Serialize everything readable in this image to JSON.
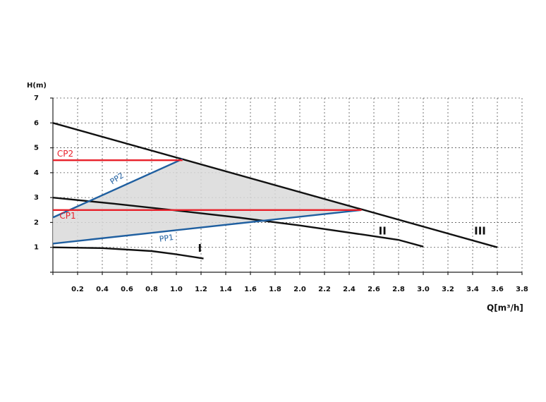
{
  "chart_data": {
    "type": "line",
    "y_axis_label": "H(m)",
    "x_axis_label": "Q[m³/h]",
    "xlim": [
      0,
      3.8
    ],
    "ylim": [
      0,
      7
    ],
    "xticks": [
      0.2,
      0.4,
      0.6,
      0.8,
      {
        "value": 1,
        "label": "1.0"
      },
      1.2,
      1.4,
      1.6,
      1.8,
      {
        "value": 2,
        "label": "2.0"
      },
      2.2,
      2.4,
      2.6,
      2.8,
      {
        "value": 3,
        "label": "3.0"
      },
      3.2,
      3.4,
      3.6,
      3.8
    ],
    "yticks": [
      1,
      2,
      3,
      4,
      5,
      6,
      7
    ],
    "grid": true,
    "series": [
      {
        "name": "I",
        "color": "#111111",
        "x": [
          0,
          0.4,
          0.8,
          1.0,
          1.22
        ],
        "values": [
          1.0,
          0.97,
          0.85,
          0.72,
          0.55
        ]
      },
      {
        "name": "II",
        "color": "#111111",
        "x": [
          0,
          0.5,
          1.0,
          1.5,
          2.0,
          2.5,
          2.8,
          3.0
        ],
        "values": [
          3.0,
          2.75,
          2.48,
          2.2,
          1.88,
          1.52,
          1.3,
          1.03
        ]
      },
      {
        "name": "III",
        "color": "#111111",
        "x": [
          0,
          3.6
        ],
        "values": [
          6.0,
          1.0
        ]
      },
      {
        "name": "PP1",
        "color": "#1f5fa0",
        "x": [
          0,
          2.5
        ],
        "values": [
          1.15,
          2.5
        ]
      },
      {
        "name": "PP2",
        "color": "#1f5fa0",
        "x": [
          0,
          1.05
        ],
        "values": [
          2.2,
          4.55
        ]
      },
      {
        "name": "CP1",
        "color": "#e8202a",
        "x": [
          0,
          2.5
        ],
        "values": [
          2.5,
          2.5
        ]
      },
      {
        "name": "CP2",
        "color": "#e8202a",
        "x": [
          0,
          1.05
        ],
        "values": [
          4.5,
          4.5
        ]
      }
    ]
  }
}
